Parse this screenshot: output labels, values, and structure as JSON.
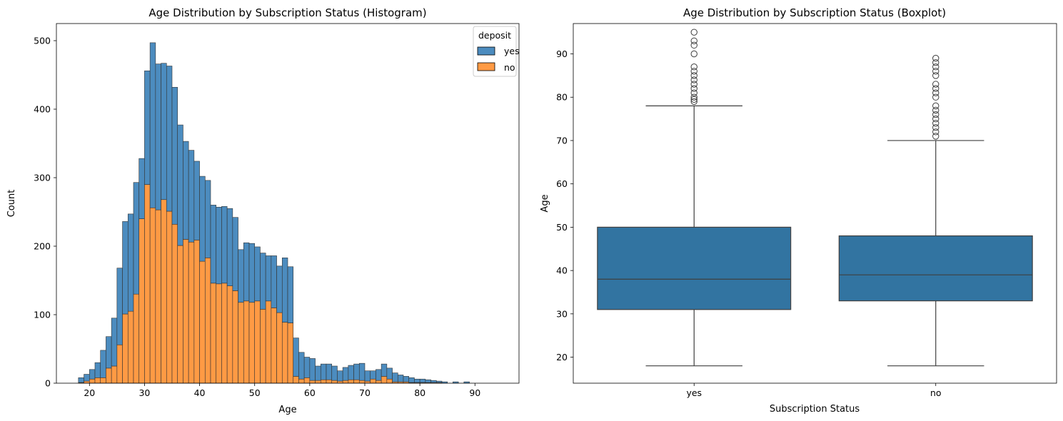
{
  "chart_data": [
    {
      "type": "histogram",
      "stacked": true,
      "title": "Age Distribution by Subscription Status (Histogram)",
      "xlabel": "Age",
      "ylabel": "Count",
      "xlim": [
        14,
        98
      ],
      "ylim": [
        0,
        525
      ],
      "xticks": [
        20,
        30,
        40,
        50,
        60,
        70,
        80,
        90
      ],
      "yticks": [
        0,
        100,
        200,
        300,
        400,
        500
      ],
      "legend": {
        "title": "deposit",
        "placement": "top-right"
      },
      "bin_width": 1.0,
      "bin_start": 18,
      "series": [
        {
          "name": "yes",
          "color": "#4c8cbf",
          "totals": [
            8,
            13,
            20,
            30,
            48,
            68,
            95,
            168,
            236,
            247,
            293,
            328,
            456,
            497,
            466,
            467,
            463,
            432,
            377,
            353,
            340,
            324,
            302,
            296,
            260,
            257,
            258,
            255,
            242,
            195,
            205,
            204,
            199,
            190,
            186,
            186,
            171,
            183,
            170,
            66,
            45,
            38,
            36,
            25,
            28,
            28,
            25,
            18,
            23,
            26,
            28,
            29,
            18,
            18,
            20,
            28,
            22,
            15,
            12,
            10,
            8,
            6,
            6,
            5,
            4,
            3,
            2,
            0,
            2,
            0,
            2,
            0,
            0,
            0,
            0,
            0,
            0,
            0
          ]
        },
        {
          "name": "no",
          "color": "#ff9a44",
          "values": [
            1,
            3,
            6,
            8,
            8,
            22,
            25,
            56,
            101,
            105,
            130,
            240,
            290,
            256,
            253,
            268,
            251,
            232,
            201,
            210,
            206,
            209,
            178,
            183,
            146,
            145,
            146,
            142,
            135,
            118,
            120,
            118,
            120,
            108,
            120,
            110,
            103,
            89,
            88,
            10,
            6,
            8,
            4,
            4,
            5,
            5,
            4,
            3,
            4,
            5,
            5,
            4,
            3,
            6,
            4,
            10,
            6,
            2,
            2,
            2,
            1,
            1,
            1,
            1,
            1,
            1,
            0,
            0,
            0,
            0,
            0,
            0,
            0,
            0,
            0,
            0,
            0,
            0
          ]
        }
      ]
    },
    {
      "type": "boxplot",
      "title": "Age Distribution by Subscription Status (Boxplot)",
      "xlabel": "Subscription Status",
      "ylabel": "Age",
      "ylim": [
        14,
        97
      ],
      "yticks": [
        20,
        30,
        40,
        50,
        60,
        70,
        80,
        90
      ],
      "categories": [
        "yes",
        "no"
      ],
      "color": "#3274a1",
      "boxes": [
        {
          "category": "yes",
          "whisker_low": 18,
          "q1": 31,
          "median": 38,
          "q3": 50,
          "whisker_high": 78,
          "outliers": [
            79,
            79.5,
            80,
            81,
            82,
            83,
            84,
            85,
            86,
            87,
            90,
            92,
            93,
            95
          ]
        },
        {
          "category": "no",
          "whisker_low": 18,
          "q1": 33,
          "median": 39,
          "q3": 48,
          "whisker_high": 70,
          "outliers": [
            71,
            72,
            73,
            74,
            75,
            76,
            77,
            78,
            80,
            81,
            82,
            83,
            85,
            86,
            87,
            88,
            89
          ]
        }
      ]
    }
  ]
}
